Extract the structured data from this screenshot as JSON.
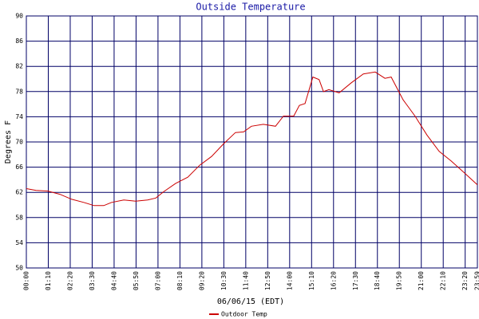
{
  "chart_data": {
    "type": "line",
    "title": "Outside Temperature",
    "xlabel": "06/06/15 (EDT)",
    "ylabel": "Degrees F",
    "x": [
      0,
      31,
      69,
      107,
      145,
      183,
      216,
      247,
      272,
      311,
      349,
      387,
      413,
      438,
      476,
      515,
      553,
      591,
      629,
      667,
      693,
      718,
      756,
      795,
      820,
      853,
      871,
      889,
      914,
      934,
      948,
      965,
      998,
      1037,
      1075,
      1113,
      1144,
      1164,
      1202,
      1240,
      1278,
      1317,
      1355,
      1393,
      1439
    ],
    "series": [
      {
        "name": "Outdoor Temp",
        "color": "#cc0000",
        "values": [
          62.6,
          62.3,
          62.2,
          61.7,
          60.9,
          60.4,
          59.9,
          59.9,
          60.4,
          60.8,
          60.6,
          60.8,
          61.1,
          62.1,
          63.4,
          64.4,
          66.3,
          67.7,
          69.7,
          71.5,
          71.6,
          72.5,
          72.8,
          72.5,
          74.1,
          74.1,
          75.8,
          76.1,
          80.3,
          79.9,
          78.0,
          78.3,
          77.8,
          79.4,
          80.8,
          81.1,
          80.1,
          80.3,
          76.7,
          74.1,
          71.1,
          68.5,
          67.0,
          65.3,
          63.2
        ]
      }
    ],
    "xlim": [
      0,
      1439
    ],
    "xticks": [
      {
        "value": 0,
        "label": "00:00"
      },
      {
        "value": 70,
        "label": "01:10"
      },
      {
        "value": 140,
        "label": "02:20"
      },
      {
        "value": 210,
        "label": "03:30"
      },
      {
        "value": 280,
        "label": "04:40"
      },
      {
        "value": 350,
        "label": "05:50"
      },
      {
        "value": 420,
        "label": "07:00"
      },
      {
        "value": 490,
        "label": "08:10"
      },
      {
        "value": 560,
        "label": "09:20"
      },
      {
        "value": 630,
        "label": "10:30"
      },
      {
        "value": 700,
        "label": "11:40"
      },
      {
        "value": 770,
        "label": "12:50"
      },
      {
        "value": 840,
        "label": "14:00"
      },
      {
        "value": 910,
        "label": "15:10"
      },
      {
        "value": 980,
        "label": "16:20"
      },
      {
        "value": 1050,
        "label": "17:30"
      },
      {
        "value": 1120,
        "label": "18:40"
      },
      {
        "value": 1190,
        "label": "19:50"
      },
      {
        "value": 1260,
        "label": "21:00"
      },
      {
        "value": 1330,
        "label": "22:10"
      },
      {
        "value": 1400,
        "label": "23:20"
      },
      {
        "value": 1439,
        "label": "23:59"
      }
    ],
    "ylim": [
      50,
      90
    ],
    "yticks": [
      50,
      54,
      58,
      62,
      66,
      70,
      74,
      78,
      82,
      86,
      90
    ],
    "grid": true
  }
}
